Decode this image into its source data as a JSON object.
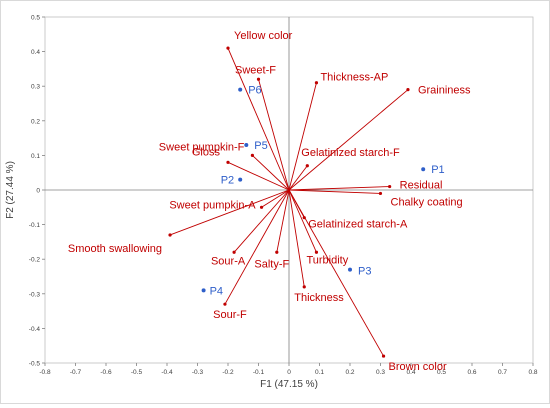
{
  "chart_data": {
    "type": "scatter",
    "subtype": "biplot",
    "title": "",
    "xlabel": "F1 (47.15 %)",
    "ylabel": "F2 (27.44 %)",
    "xlim": [
      -0.8,
      0.8
    ],
    "ylim": [
      -0.5,
      0.5
    ],
    "xticks": [
      "-0.8",
      "-0.7",
      "-0.6",
      "-0.5",
      "-0.4",
      "-0.3",
      "-0.2",
      "-0.1",
      "0",
      "0.1",
      "0.2",
      "0.3",
      "0.4",
      "0.5",
      "0.6",
      "0.7",
      "0.8"
    ],
    "yticks": [
      "0.5",
      "0.4",
      "0.3",
      "0.2",
      "0.1",
      "0",
      "-0.1",
      "-0.2",
      "-0.3",
      "-0.4",
      "-0.5"
    ],
    "grid": false,
    "colors": {
      "variables": "#c00000",
      "observations": "#2e5ec9",
      "axes": "#808080"
    },
    "variables": [
      {
        "name": "Yellow color",
        "x": -0.2,
        "y": 0.41
      },
      {
        "name": "Sweet-F",
        "x": -0.1,
        "y": 0.32
      },
      {
        "name": "Thickness-AP",
        "x": 0.09,
        "y": 0.31
      },
      {
        "name": "Graininess",
        "x": 0.39,
        "y": 0.29
      },
      {
        "name": "Sweet pumpkin-F",
        "x": -0.12,
        "y": 0.1
      },
      {
        "name": "Gloss",
        "x": -0.2,
        "y": 0.08
      },
      {
        "name": "Gelatinized starch-F",
        "x": 0.06,
        "y": 0.07
      },
      {
        "name": "Residual",
        "x": 0.33,
        "y": 0.01
      },
      {
        "name": "Chalky coating",
        "x": 0.3,
        "y": -0.01
      },
      {
        "name": "Sweet pumpkin-A",
        "x": -0.09,
        "y": -0.05
      },
      {
        "name": "Gelatinized starch-A",
        "x": 0.05,
        "y": -0.08
      },
      {
        "name": "Smooth swallowing",
        "x": -0.39,
        "y": -0.13
      },
      {
        "name": "Sour-A",
        "x": -0.18,
        "y": -0.18
      },
      {
        "name": "Salty-F",
        "x": -0.04,
        "y": -0.18
      },
      {
        "name": "Turbidity",
        "x": 0.09,
        "y": -0.18
      },
      {
        "name": "Thickness",
        "x": 0.05,
        "y": -0.28
      },
      {
        "name": "Sour-F",
        "x": -0.21,
        "y": -0.33
      },
      {
        "name": "Brown color",
        "x": 0.31,
        "y": -0.48
      }
    ],
    "observations": [
      {
        "name": "P1",
        "x": 0.44,
        "y": 0.06
      },
      {
        "name": "P2",
        "x": -0.16,
        "y": 0.03
      },
      {
        "name": "P3",
        "x": 0.2,
        "y": -0.23
      },
      {
        "name": "P4",
        "x": -0.28,
        "y": -0.29
      },
      {
        "name": "P5",
        "x": -0.14,
        "y": 0.13
      },
      {
        "name": "P6",
        "x": -0.16,
        "y": 0.29
      }
    ]
  }
}
